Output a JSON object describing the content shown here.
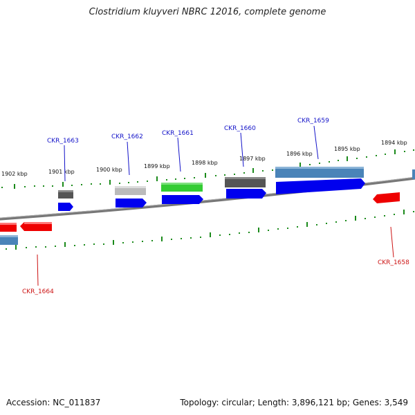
{
  "title": "Clostridium kluyveri NBRC 12016, complete genome",
  "accession": "Accession: NC_011837",
  "topology": "Topology: circular; Length: 3,896,121 bp; Genes: 3,549",
  "colors": {
    "backbone": "#777777",
    "tick": "#1a8a1a",
    "forward_label": "#1010c8",
    "reverse_label": "#cc1111",
    "cds": "#0000ee",
    "cds_reverse": "#ee0000",
    "gene_gray": "#555555",
    "gene_light": "#bbbbbb",
    "gene_green": "#33cc33",
    "gene_steel": "#4a84b8"
  },
  "kbp_labels": [
    "1902 kbp",
    "1901 kbp",
    "1900 kbp",
    "1899 kbp",
    "1898 kbp",
    "1897 kbp",
    "1896 kbp",
    "1895 kbp",
    "1894 kbp"
  ],
  "gene_labels_forward": [
    "CKR_1663",
    "CKR_1662",
    "CKR_1661",
    "CKR_1660",
    "CKR_1659"
  ],
  "gene_labels_reverse": [
    "CKR_1664",
    "CKR_1658"
  ]
}
